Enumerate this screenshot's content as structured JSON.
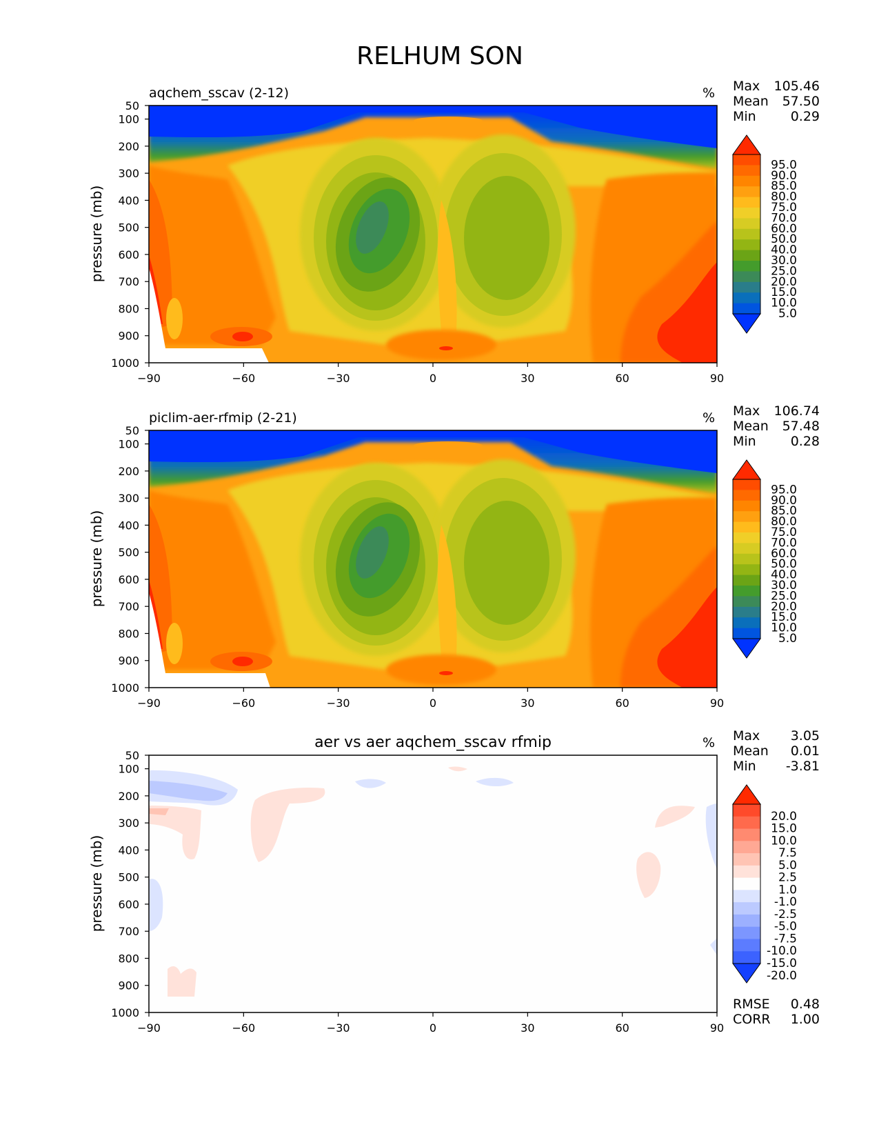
{
  "figure_title": "RELHUM SON",
  "chart_data": [
    {
      "type": "heatmap",
      "title": "aqchem_sscav (2-12)",
      "units": "%",
      "ylabel": "pressure (mb)",
      "xticks": [
        "−90",
        "−60",
        "−30",
        "0",
        "30",
        "60",
        "90"
      ],
      "yticks": [
        "50",
        "100",
        "200",
        "300",
        "400",
        "500",
        "600",
        "700",
        "800",
        "900",
        "1000"
      ],
      "xlim": [
        -90,
        90
      ],
      "ylim": [
        1000,
        50
      ],
      "stats": [
        {
          "label": "Max",
          "value": "105.46"
        },
        {
          "label": "Mean",
          "value": "57.50"
        },
        {
          "label": "Min",
          "value": "0.29"
        }
      ],
      "colorbar": {
        "levels": [
          "95.0",
          "90.0",
          "85.0",
          "80.0",
          "75.0",
          "70.0",
          "60.0",
          "50.0",
          "40.0",
          "30.0",
          "25.0",
          "20.0",
          "15.0",
          "10.0",
          "5.0"
        ],
        "colors": [
          "#ff2a00",
          "#ff4d00",
          "#ff6a00",
          "#ff8500",
          "#ffa010",
          "#ffbb1c",
          "#f0cf28",
          "#d7cc23",
          "#b8c31b",
          "#93b514",
          "#6ba416",
          "#449c2c",
          "#3c8a58",
          "#2a7d8a",
          "#0a6fbb",
          "#0055e0",
          "#0033ff"
        ]
      },
      "footer_stats": []
    },
    {
      "type": "heatmap",
      "title": "piclim-aer-rfmip (2-21)",
      "units": "%",
      "ylabel": "pressure (mb)",
      "xticks": [
        "−90",
        "−60",
        "−30",
        "0",
        "30",
        "60",
        "90"
      ],
      "yticks": [
        "50",
        "100",
        "200",
        "300",
        "400",
        "500",
        "600",
        "700",
        "800",
        "900",
        "1000"
      ],
      "xlim": [
        -90,
        90
      ],
      "ylim": [
        1000,
        50
      ],
      "stats": [
        {
          "label": "Max",
          "value": "106.74"
        },
        {
          "label": "Mean",
          "value": "57.48"
        },
        {
          "label": "Min",
          "value": "0.28"
        }
      ],
      "colorbar": {
        "levels": [
          "95.0",
          "90.0",
          "85.0",
          "80.0",
          "75.0",
          "70.0",
          "60.0",
          "50.0",
          "40.0",
          "30.0",
          "25.0",
          "20.0",
          "15.0",
          "10.0",
          "5.0"
        ],
        "colors": [
          "#ff2a00",
          "#ff4d00",
          "#ff6a00",
          "#ff8500",
          "#ffa010",
          "#ffbb1c",
          "#f0cf28",
          "#d7cc23",
          "#b8c31b",
          "#93b514",
          "#6ba416",
          "#449c2c",
          "#3c8a58",
          "#2a7d8a",
          "#0a6fbb",
          "#0055e0",
          "#0033ff"
        ]
      },
      "footer_stats": []
    },
    {
      "type": "heatmap",
      "title": "aer vs aer aqchem_sscav rfmip",
      "units": "%",
      "ylabel": "pressure (mb)",
      "xticks": [
        "−90",
        "−60",
        "−30",
        "0",
        "30",
        "60",
        "90"
      ],
      "yticks": [
        "50",
        "100",
        "200",
        "300",
        "400",
        "500",
        "600",
        "700",
        "800",
        "900",
        "1000"
      ],
      "xlim": [
        -90,
        90
      ],
      "ylim": [
        1000,
        50
      ],
      "stats": [
        {
          "label": "Max",
          "value": "3.05"
        },
        {
          "label": "Mean",
          "value": "0.01"
        },
        {
          "label": "Min",
          "value": "-3.81"
        }
      ],
      "colorbar": {
        "levels": [
          "20.0",
          "15.0",
          "10.0",
          "7.5",
          "5.0",
          "2.5",
          "1.0",
          "-1.0",
          "-2.5",
          "-5.0",
          "-7.5",
          "-10.0",
          "-15.0",
          "-20.0"
        ],
        "colors": [
          "#ff2a00",
          "#ff4a2a",
          "#ff6a4c",
          "#ff8a70",
          "#ffa894",
          "#ffc4b4",
          "#ffe2da",
          "#fefefe",
          "#dce4ff",
          "#bccaff",
          "#9cb0ff",
          "#7c96ff",
          "#5c7cff",
          "#3c62ff",
          "#1440ff"
        ]
      },
      "footer_stats": [
        {
          "label": "RMSE",
          "value": "0.48"
        },
        {
          "label": "CORR",
          "value": "1.00"
        }
      ]
    }
  ]
}
